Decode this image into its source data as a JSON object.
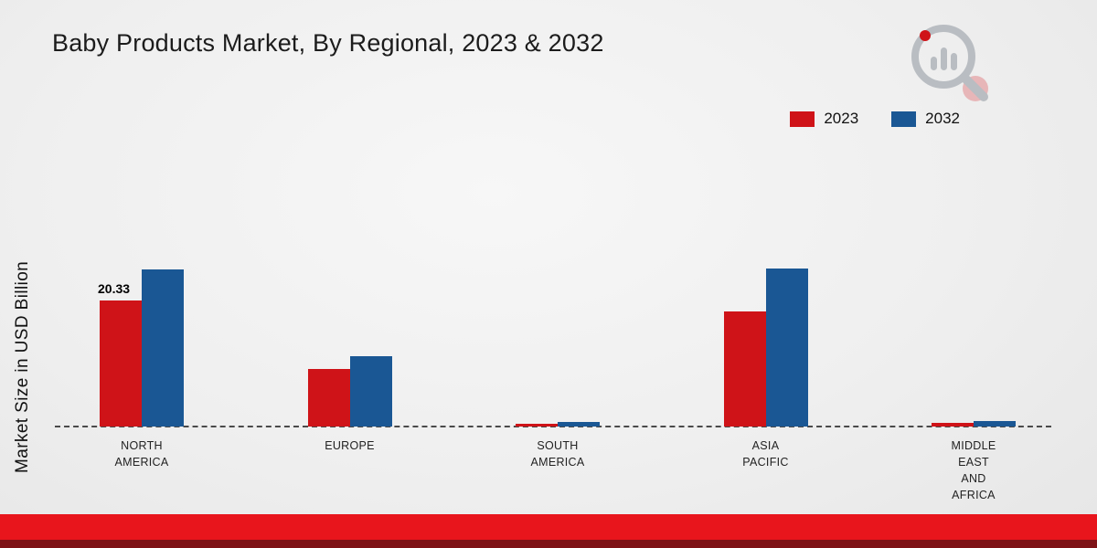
{
  "title": "Baby Products Market, By Regional, 2023 & 2032",
  "y_axis_label": "Market Size in USD Billion",
  "legend": [
    {
      "label": "2023",
      "color": "#cf1318"
    },
    {
      "label": "2032",
      "color": "#1a5794"
    }
  ],
  "colors": {
    "series_2023": "#cf1318",
    "series_2032": "#1a5794",
    "footer_band": "#e8151c",
    "footer_band_dark": "#7e1216",
    "logo_gray": "#b9bdc2"
  },
  "chart_data": {
    "type": "bar",
    "categories": [
      "NORTH\nAMERICA",
      "EUROPE",
      "SOUTH\nAMERICA",
      "ASIA\nPACIFIC",
      "MIDDLE\nEAST\nAND\nAFRICA"
    ],
    "series": [
      {
        "name": "2023",
        "color": "#cf1318",
        "values": [
          20.33,
          9.3,
          0.45,
          18.5,
          0.6
        ]
      },
      {
        "name": "2032",
        "color": "#1a5794",
        "values": [
          25.3,
          11.4,
          0.7,
          25.5,
          0.9
        ]
      }
    ],
    "title": "Baby Products Market, By Regional, 2023 & 2032",
    "xlabel": "",
    "ylabel": "Market Size in USD Billion",
    "ylim": [
      0,
      27
    ],
    "grid": false,
    "legend_position": "top-right",
    "baseline_style": "dashed",
    "data_labels": [
      {
        "series": "2023",
        "category_index": 0,
        "text": "20.33"
      }
    ]
  }
}
